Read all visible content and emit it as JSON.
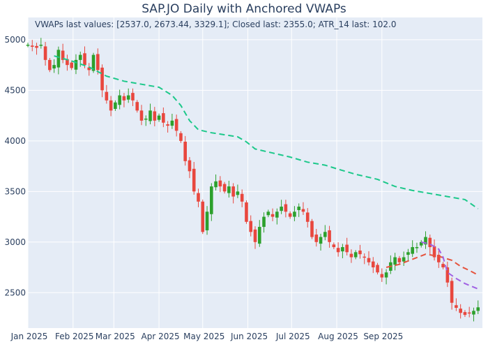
{
  "chart_data": {
    "type": "candlestick",
    "title": "SAP.JO Daily with Anchored VWAPs",
    "annotation": "VWAPs last values: [2537.0, 2673.44, 3329.1]; Closed last: 2355.0; ATR_14 last: 102.0",
    "x_ticks": [
      "Jan 2025",
      "Feb 2025",
      "Mar 2025",
      "Apr 2025",
      "May 2025",
      "Jun 2025",
      "Jul 2025",
      "Aug 2025",
      "Sep 2025"
    ],
    "y_ticks": [
      2500,
      3000,
      3500,
      4000,
      4500,
      5000
    ],
    "ylim": [
      2150,
      5220
    ],
    "grid": true,
    "colors": {
      "up": "#2ca02c",
      "down": "#e8473e",
      "plot_bg": "#e5ecf6"
    },
    "closes": [
      [
        0,
        4950
      ],
      [
        3,
        4930
      ],
      [
        6,
        4920
      ],
      [
        9,
        4950
      ],
      [
        12,
        4800
      ],
      [
        15,
        4700
      ],
      [
        18,
        4750
      ],
      [
        21,
        4900
      ],
      [
        24,
        4800
      ],
      [
        27,
        4750
      ],
      [
        30,
        4720
      ],
      [
        33,
        4800
      ],
      [
        36,
        4850
      ],
      [
        39,
        4750
      ],
      [
        42,
        4700
      ],
      [
        45,
        4850
      ],
      [
        48,
        4700
      ],
      [
        51,
        4500
      ],
      [
        54,
        4400
      ],
      [
        57,
        4300
      ],
      [
        60,
        4380
      ],
      [
        63,
        4450
      ],
      [
        66,
        4400
      ],
      [
        69,
        4450
      ],
      [
        72,
        4400
      ],
      [
        75,
        4300
      ],
      [
        78,
        4200
      ],
      [
        81,
        4220
      ],
      [
        84,
        4300
      ],
      [
        87,
        4200
      ],
      [
        90,
        4250
      ],
      [
        93,
        4180
      ],
      [
        96,
        4150
      ],
      [
        99,
        4200
      ],
      [
        102,
        4100
      ],
      [
        105,
        4000
      ],
      [
        108,
        3800
      ],
      [
        111,
        3700
      ],
      [
        114,
        3500
      ],
      [
        117,
        3400
      ],
      [
        120,
        3100
      ],
      [
        123,
        3300
      ],
      [
        126,
        3550
      ],
      [
        129,
        3600
      ],
      [
        132,
        3550
      ],
      [
        135,
        3500
      ],
      [
        138,
        3550
      ],
      [
        141,
        3450
      ],
      [
        144,
        3500
      ],
      [
        147,
        3400
      ],
      [
        150,
        3200
      ],
      [
        153,
        3100
      ],
      [
        156,
        3000
      ],
      [
        159,
        3150
      ],
      [
        162,
        3250
      ],
      [
        165,
        3300
      ],
      [
        168,
        3250
      ],
      [
        171,
        3300
      ],
      [
        174,
        3350
      ],
      [
        177,
        3300
      ],
      [
        180,
        3250
      ],
      [
        183,
        3300
      ],
      [
        186,
        3350
      ],
      [
        189,
        3300
      ],
      [
        192,
        3200
      ],
      [
        195,
        3050
      ],
      [
        198,
        3000
      ],
      [
        201,
        3050
      ],
      [
        204,
        3100
      ],
      [
        207,
        3000
      ],
      [
        210,
        2950
      ],
      [
        213,
        2900
      ],
      [
        216,
        2950
      ],
      [
        219,
        2900
      ],
      [
        222,
        2850
      ],
      [
        225,
        2900
      ],
      [
        228,
        2880
      ],
      [
        231,
        2850
      ],
      [
        234,
        2800
      ],
      [
        237,
        2750
      ],
      [
        240,
        2700
      ],
      [
        243,
        2650
      ],
      [
        246,
        2700
      ],
      [
        249,
        2800
      ],
      [
        252,
        2850
      ],
      [
        255,
        2800
      ],
      [
        258,
        2850
      ],
      [
        261,
        2900
      ],
      [
        264,
        2950
      ],
      [
        267,
        2950
      ],
      [
        270,
        3000
      ],
      [
        273,
        3050
      ],
      [
        276,
        2950
      ],
      [
        279,
        2850
      ],
      [
        282,
        2800
      ],
      [
        285,
        2750
      ],
      [
        288,
        2600
      ],
      [
        291,
        2400
      ],
      [
        294,
        2350
      ],
      [
        297,
        2300
      ],
      [
        300,
        2280
      ],
      [
        303,
        2300
      ],
      [
        306,
        2320
      ],
      [
        309,
        2355
      ]
    ],
    "series": [
      {
        "name": "VWAP (green)",
        "color": "#1cc88a",
        "last_value": 3329.1,
        "points": [
          [
            18,
            4840
          ],
          [
            30,
            4790
          ],
          [
            42,
            4730
          ],
          [
            54,
            4640
          ],
          [
            66,
            4590
          ],
          [
            78,
            4560
          ],
          [
            90,
            4530
          ],
          [
            99,
            4450
          ],
          [
            105,
            4350
          ],
          [
            111,
            4200
          ],
          [
            117,
            4110
          ],
          [
            126,
            4080
          ],
          [
            135,
            4060
          ],
          [
            144,
            4040
          ],
          [
            150,
            3990
          ],
          [
            156,
            3920
          ],
          [
            168,
            3880
          ],
          [
            180,
            3840
          ],
          [
            192,
            3790
          ],
          [
            204,
            3760
          ],
          [
            213,
            3720
          ],
          [
            225,
            3670
          ],
          [
            240,
            3620
          ],
          [
            252,
            3550
          ],
          [
            264,
            3510
          ],
          [
            276,
            3480
          ],
          [
            288,
            3450
          ],
          [
            300,
            3420
          ],
          [
            309,
            3329.1
          ]
        ]
      },
      {
        "name": "VWAP (red)",
        "color": "#e5533d",
        "last_value": 2673.44,
        "points": [
          [
            246,
            2750
          ],
          [
            255,
            2780
          ],
          [
            264,
            2830
          ],
          [
            273,
            2880
          ],
          [
            282,
            2860
          ],
          [
            291,
            2820
          ],
          [
            297,
            2760
          ],
          [
            303,
            2720
          ],
          [
            309,
            2673.44
          ]
        ]
      },
      {
        "name": "VWAP (purple)",
        "color": "#a161e3",
        "last_value": 2537.0,
        "points": [
          [
            270,
            3000
          ],
          [
            276,
            2980
          ],
          [
            282,
            2930
          ],
          [
            285,
            2850
          ],
          [
            288,
            2700
          ],
          [
            294,
            2640
          ],
          [
            300,
            2590
          ],
          [
            305,
            2560
          ],
          [
            309,
            2537.0
          ]
        ]
      }
    ]
  }
}
